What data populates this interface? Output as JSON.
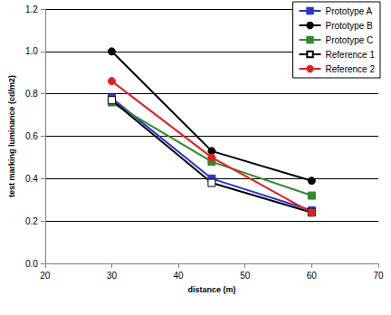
{
  "chart_data": {
    "type": "line",
    "x_label": "distance (m)",
    "y_label": "test marking luminance (cd/m2)",
    "x": [
      30,
      45,
      60
    ],
    "series": [
      {
        "name": "Prototype A",
        "color": "#2b35c8",
        "marker": "square",
        "line_style": "solid",
        "values": [
          0.78,
          0.4,
          0.25
        ]
      },
      {
        "name": "Prototype B",
        "color": "#000000",
        "marker": "circle",
        "line_style": "solid",
        "values": [
          1.0,
          0.53,
          0.39
        ]
      },
      {
        "name": "Prototype C",
        "color": "#2e8b2e",
        "marker": "square",
        "line_style": "solid",
        "values": [
          0.76,
          0.48,
          0.32
        ]
      },
      {
        "name": "Reference 1",
        "color": "#000000",
        "marker": "open_square",
        "line_style": "solid",
        "values": [
          0.77,
          0.38,
          0.24
        ]
      },
      {
        "name": "Reference 2",
        "color": "#e02020",
        "marker": "circle",
        "line_style": "solid",
        "values": [
          0.86,
          0.5,
          0.24
        ]
      }
    ],
    "xlim": [
      20,
      70
    ],
    "xticks": [
      20,
      30,
      40,
      50,
      60,
      70
    ],
    "ylim": [
      0,
      1.2
    ],
    "yticks": [
      {
        "value": 0,
        "label": "0.0"
      },
      0.2,
      0.4,
      0.6,
      0.8,
      {
        "value": 1,
        "label": "1.0"
      },
      1.2
    ],
    "grid": true,
    "legend": "top-right"
  }
}
